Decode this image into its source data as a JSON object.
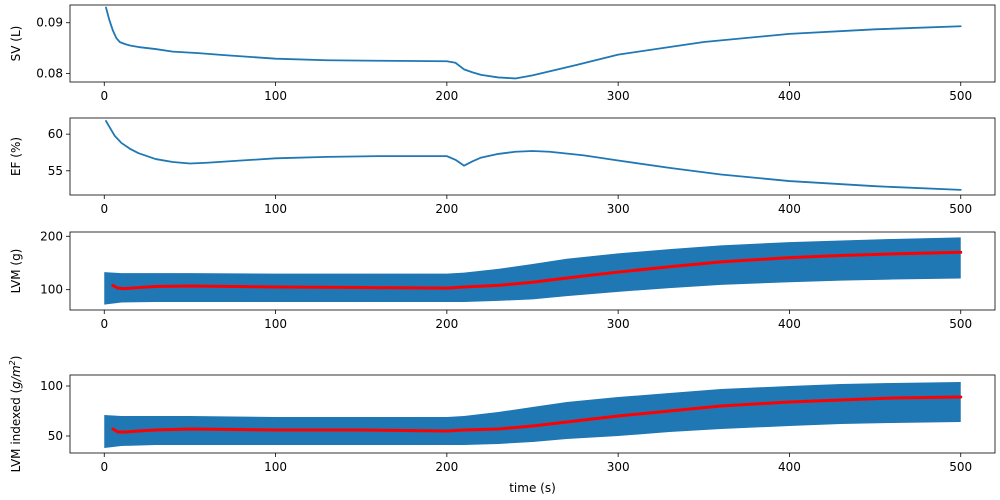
{
  "colors": {
    "blue": "#1f77b4",
    "red": "#ff0000",
    "axis": "#000000",
    "background": "#ffffff"
  },
  "chart_data": [
    {
      "type": "line",
      "ylabel": "SV (L)",
      "xlabel": "",
      "xlim": [
        -20,
        520
      ],
      "ylim": [
        0.0783,
        0.0935
      ],
      "xticks": [
        0,
        100,
        200,
        300,
        400,
        500
      ],
      "xtick_labels": [
        "0",
        "100",
        "200",
        "300",
        "400",
        "500"
      ],
      "yticks": [
        0.08,
        0.09
      ],
      "ytick_labels": [
        "0.08",
        "0.09"
      ],
      "series": [
        {
          "color": "#1f77b4",
          "x": [
            1,
            3,
            5,
            7,
            9,
            12,
            15,
            20,
            30,
            40,
            50,
            55,
            70,
            100,
            130,
            160,
            200,
            205,
            210,
            215,
            220,
            230,
            240,
            250,
            275,
            300,
            350,
            400,
            450,
            500
          ],
          "y": [
            0.093,
            0.0905,
            0.0885,
            0.087,
            0.0862,
            0.0858,
            0.0855,
            0.0852,
            0.0848,
            0.0843,
            0.0841,
            0.084,
            0.0836,
            0.0829,
            0.0826,
            0.0825,
            0.0824,
            0.0821,
            0.0808,
            0.0802,
            0.0797,
            0.0792,
            0.079,
            0.0796,
            0.0816,
            0.0837,
            0.0862,
            0.0878,
            0.0887,
            0.0893
          ]
        }
      ]
    },
    {
      "type": "line",
      "ylabel": "EF (%)",
      "xlabel": "",
      "xlim": [
        -20,
        520
      ],
      "ylim": [
        51.7,
        62.2
      ],
      "xticks": [
        0,
        100,
        200,
        300,
        400,
        500
      ],
      "xtick_labels": [
        "0",
        "100",
        "200",
        "300",
        "400",
        "500"
      ],
      "yticks": [
        55,
        60
      ],
      "ytick_labels": [
        "55",
        "60"
      ],
      "series": [
        {
          "color": "#1f77b4",
          "x": [
            1,
            3,
            6,
            10,
            15,
            20,
            30,
            40,
            50,
            60,
            80,
            100,
            130,
            160,
            200,
            205,
            210,
            215,
            220,
            230,
            240,
            250,
            260,
            280,
            300,
            330,
            360,
            400,
            450,
            500
          ],
          "y": [
            61.8,
            61.0,
            59.8,
            58.8,
            58.0,
            57.4,
            56.6,
            56.2,
            56.0,
            56.1,
            56.4,
            56.7,
            56.9,
            57.0,
            57.0,
            56.5,
            55.7,
            56.3,
            56.8,
            57.3,
            57.6,
            57.7,
            57.6,
            57.1,
            56.4,
            55.4,
            54.5,
            53.6,
            52.9,
            52.4
          ]
        }
      ]
    },
    {
      "type": "area",
      "ylabel": "LVM (g)",
      "xlabel": "",
      "xlim": [
        -20,
        520
      ],
      "ylim": [
        62,
        208
      ],
      "xticks": [
        0,
        100,
        200,
        300,
        400,
        500
      ],
      "xtick_labels": [
        "0",
        "100",
        "200",
        "300",
        "400",
        "500"
      ],
      "yticks": [
        100,
        200
      ],
      "ytick_labels": [
        "100",
        "200"
      ],
      "band": {
        "color": "#1f77b4",
        "x": [
          0,
          10,
          30,
          50,
          100,
          150,
          200,
          210,
          230,
          250,
          270,
          300,
          330,
          360,
          400,
          430,
          460,
          500
        ],
        "lower": [
          72,
          76,
          77,
          77,
          77,
          77,
          77,
          77,
          79,
          82,
          88,
          96,
          103,
          109,
          114,
          117,
          119,
          121
        ],
        "upper": [
          133,
          131,
          131,
          131,
          130,
          130,
          130,
          132,
          139,
          148,
          158,
          168,
          176,
          183,
          189,
          192,
          195,
          198
        ]
      },
      "series": [
        {
          "color": "#ff0000",
          "x": [
            5,
            8,
            12,
            20,
            30,
            50,
            100,
            150,
            200,
            210,
            230,
            250,
            270,
            300,
            330,
            360,
            400,
            430,
            460,
            500
          ],
          "y": [
            108,
            103,
            102,
            104,
            106,
            107,
            105,
            104,
            103,
            105,
            108,
            114,
            122,
            133,
            143,
            152,
            160,
            164,
            167,
            170
          ]
        }
      ]
    },
    {
      "type": "area",
      "ylabel": "LVM indexed",
      "ylabel_unit_base": "g/m",
      "ylabel_unit_sup": "2",
      "xlabel": "time (s)",
      "xlim": [
        -20,
        520
      ],
      "ylim": [
        33,
        111
      ],
      "xticks": [
        0,
        100,
        200,
        300,
        400,
        500
      ],
      "xtick_labels": [
        "0",
        "100",
        "200",
        "300",
        "400",
        "500"
      ],
      "yticks": [
        50,
        100
      ],
      "ytick_labels": [
        "50",
        "100"
      ],
      "band": {
        "color": "#1f77b4",
        "x": [
          0,
          10,
          30,
          50,
          100,
          150,
          200,
          210,
          230,
          250,
          270,
          300,
          330,
          360,
          400,
          430,
          460,
          500
        ],
        "lower": [
          38,
          40,
          41,
          41,
          41,
          41,
          41,
          41,
          42,
          44,
          47,
          50,
          54,
          57,
          60,
          62,
          63,
          64
        ],
        "upper": [
          71,
          70,
          70,
          70,
          69,
          69,
          69,
          70,
          74,
          79,
          84,
          89,
          93,
          97,
          100,
          102,
          103,
          104
        ]
      },
      "series": [
        {
          "color": "#ff0000",
          "x": [
            5,
            8,
            12,
            20,
            30,
            50,
            100,
            150,
            200,
            210,
            230,
            250,
            270,
            300,
            330,
            360,
            400,
            430,
            460,
            500
          ],
          "y": [
            57,
            54,
            54,
            55,
            56,
            57,
            56,
            56,
            55,
            56,
            57,
            60,
            64,
            70,
            75,
            80,
            84,
            86,
            88,
            89
          ]
        }
      ]
    }
  ]
}
